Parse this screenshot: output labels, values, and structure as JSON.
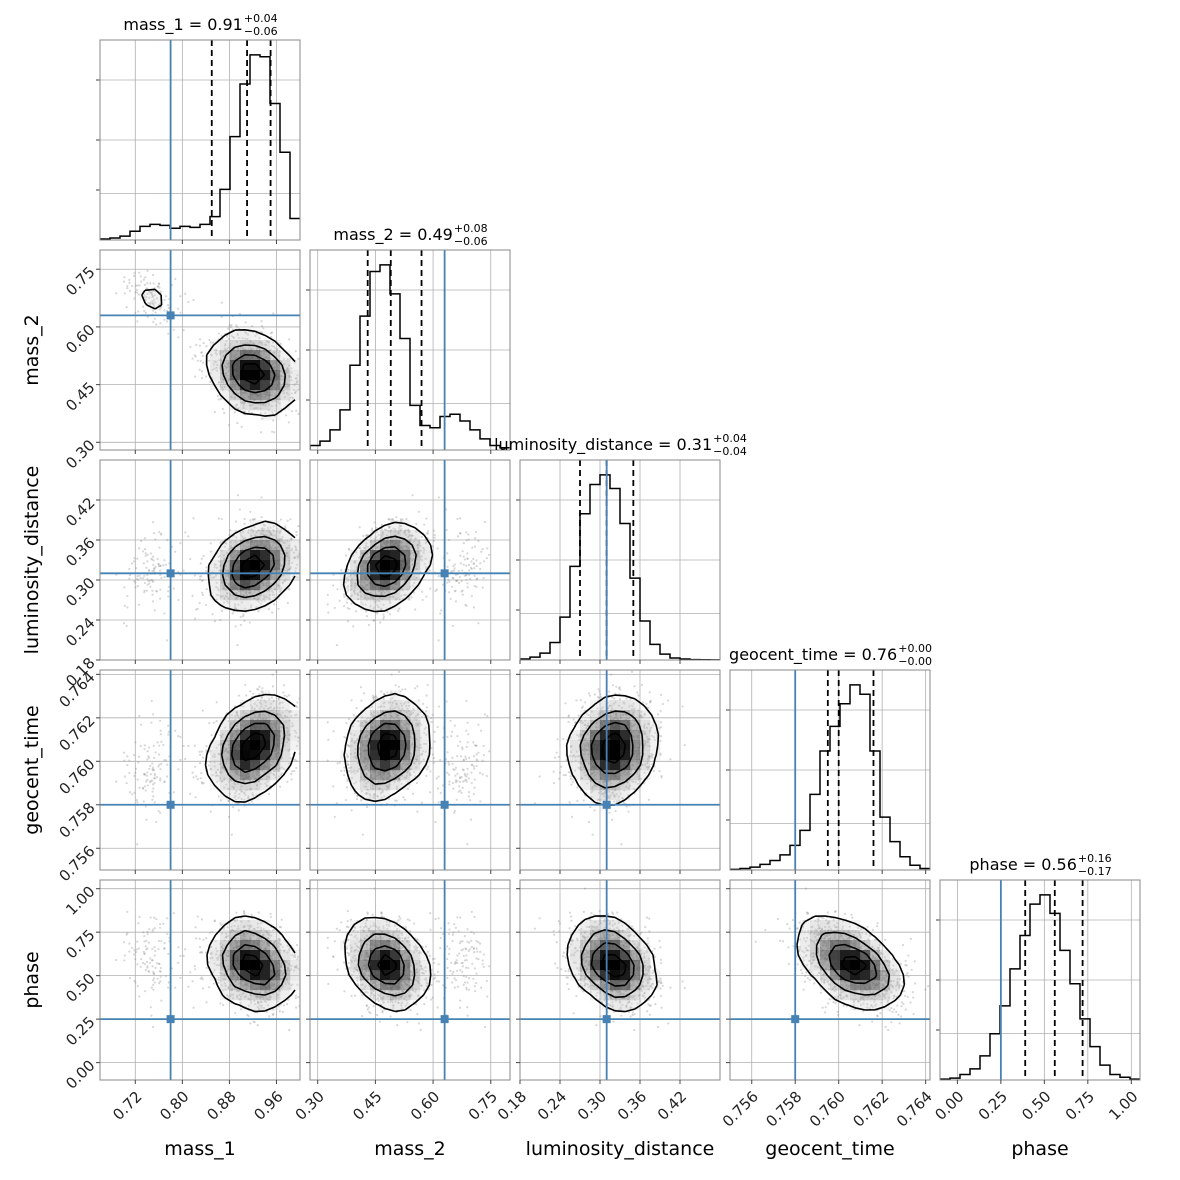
{
  "chart_data": {
    "type": "corner",
    "grid": true,
    "colors": {
      "truth": "#4682b4",
      "hist": "#000000",
      "scatter": "#8c8c8c",
      "quantile": "#000000"
    },
    "parameters": [
      {
        "name": "mass_1",
        "range": [
          0.66,
          1.0
        ],
        "ticks": [
          0.72,
          0.8,
          0.88,
          0.96
        ],
        "tick_labels": [
          "0.72",
          "0.80",
          "0.88",
          "0.96"
        ],
        "truth": 0.78,
        "median": 0.91,
        "lower": 0.85,
        "upper": 0.95,
        "title": {
          "main": "mass_1 = 0.91",
          "plus": "+0.04",
          "minus": "−0.06"
        },
        "hist": [
          0.5,
          1,
          2,
          4.5,
          7,
          8,
          7.5,
          6,
          7,
          6.5,
          8,
          12,
          26,
          53,
          80,
          95,
          94,
          70,
          45,
          11
        ]
      },
      {
        "name": "mass_2",
        "range": [
          0.28,
          0.8
        ],
        "ticks": [
          0.3,
          0.45,
          0.6,
          0.75
        ],
        "tick_labels": [
          "0.30",
          "0.45",
          "0.60",
          "0.75"
        ],
        "truth": 0.63,
        "median": 0.49,
        "lower": 0.43,
        "upper": 0.57,
        "title": {
          "main": "mass_2 = 0.49",
          "plus": "+0.08",
          "minus": "−0.06"
        },
        "hist": [
          2,
          4,
          9,
          18,
          38,
          60,
          80,
          83,
          70,
          50,
          20,
          11,
          10,
          15,
          16,
          13,
          9,
          5,
          2,
          1
        ]
      },
      {
        "name": "luminosity_distance",
        "range": [
          0.18,
          0.48
        ],
        "ticks": [
          0.18,
          0.24,
          0.3,
          0.36,
          0.42
        ],
        "tick_labels": [
          "0.18",
          "0.24",
          "0.30",
          "0.36",
          "0.42"
        ],
        "truth": 0.31,
        "median": 0.31,
        "lower": 0.27,
        "upper": 0.35,
        "title": {
          "main": "luminosity_distance = 0.31",
          "plus": "+0.04",
          "minus": "−0.04"
        },
        "hist": [
          0.5,
          1.5,
          3.5,
          9,
          22,
          48,
          75,
          90,
          95,
          88,
          70,
          42,
          20,
          8,
          3,
          1,
          0.5,
          0.2,
          0.1,
          0.05
        ]
      },
      {
        "name": "geocent_time",
        "range": [
          0.755,
          0.7642
        ],
        "ticks": [
          0.756,
          0.758,
          0.76,
          0.762,
          0.764
        ],
        "tick_labels": [
          "0.756",
          "0.758",
          "0.760",
          "0.762",
          "0.764"
        ],
        "truth": 0.758,
        "median": 0.76,
        "lower": 0.7595,
        "upper": 0.7616,
        "title": {
          "main": "geocent_time = 0.76",
          "plus": "+0.00",
          "minus": "−0.00"
        },
        "hist": [
          0.3,
          0.8,
          1.5,
          3,
          5,
          8,
          13,
          21,
          40,
          63,
          76,
          88,
          98,
          93,
          63,
          28,
          15,
          7,
          2.5,
          0.8
        ]
      },
      {
        "name": "phase",
        "range": [
          -0.1,
          1.05
        ],
        "ticks": [
          0.0,
          0.25,
          0.5,
          0.75,
          1.0
        ],
        "tick_labels": [
          "0.00",
          "0.25",
          "0.50",
          "0.75",
          "1.00"
        ],
        "truth": 0.25,
        "median": 0.56,
        "lower": 0.39,
        "upper": 0.72,
        "title": {
          "main": "phase = 0.56",
          "plus": "+0.16",
          "minus": "−0.17"
        },
        "hist": [
          0.5,
          1,
          3,
          6,
          13,
          25,
          40,
          60,
          78,
          95,
          100,
          90,
          70,
          52,
          33,
          18,
          8,
          3,
          1.5,
          0.5
        ]
      }
    ],
    "posterior_modes": [
      {
        "weight": 0.9,
        "mean": [
          0.92,
          0.48,
          0.32,
          0.7607,
          0.56
        ],
        "std": [
          0.035,
          0.05,
          0.03,
          0.0011,
          0.12
        ]
      },
      {
        "weight": 0.1,
        "mean": [
          0.75,
          0.67,
          0.31,
          0.7595,
          0.62
        ],
        "std": [
          0.025,
          0.035,
          0.03,
          0.0012,
          0.12
        ]
      }
    ],
    "correlations": [
      [
        0,
        1,
        -0.25
      ],
      [
        0,
        2,
        0.3
      ],
      [
        0,
        3,
        0.35
      ],
      [
        0,
        4,
        -0.2
      ],
      [
        1,
        2,
        0.4
      ],
      [
        1,
        3,
        0.2
      ],
      [
        1,
        4,
        -0.3
      ],
      [
        2,
        3,
        0.15
      ],
      [
        2,
        4,
        -0.3
      ],
      [
        3,
        4,
        -0.45
      ]
    ]
  }
}
